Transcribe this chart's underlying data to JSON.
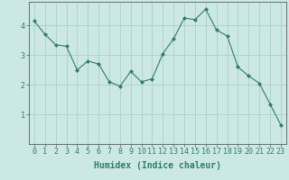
{
  "x": [
    0,
    1,
    2,
    3,
    4,
    5,
    6,
    7,
    8,
    9,
    10,
    11,
    12,
    13,
    14,
    15,
    16,
    17,
    18,
    19,
    20,
    21,
    22,
    23
  ],
  "y": [
    4.15,
    3.7,
    3.35,
    3.3,
    2.5,
    2.8,
    2.7,
    2.1,
    1.95,
    2.45,
    2.1,
    2.2,
    3.05,
    3.55,
    4.25,
    4.2,
    4.55,
    3.85,
    3.65,
    2.6,
    2.3,
    2.05,
    1.35,
    0.65
  ],
  "line_color": "#2e7d6e",
  "marker": "D",
  "marker_size": 2,
  "bg_color": "#cce8e4",
  "grid_color": "#aacfcb",
  "axis_color": "#5a5a5a",
  "xlabel": "Humidex (Indice chaleur)",
  "xlabel_fontsize": 7,
  "tick_fontsize": 6,
  "xlim": [
    -0.5,
    23.5
  ],
  "ylim": [
    0,
    4.8
  ],
  "yticks": [
    1,
    2,
    3,
    4
  ],
  "title": ""
}
